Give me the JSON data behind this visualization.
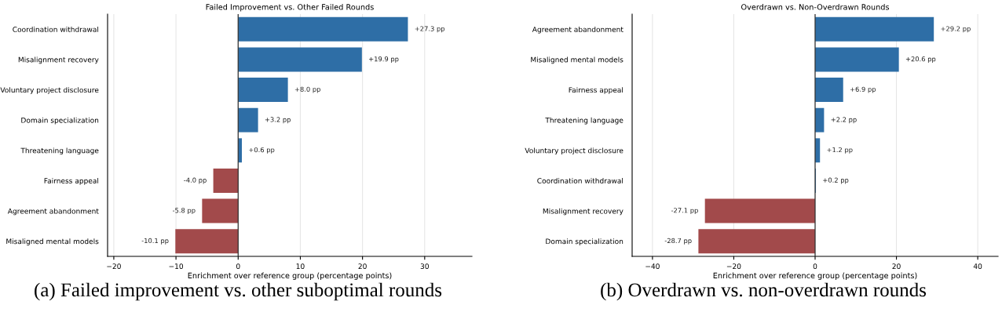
{
  "chart_data": [
    {
      "type": "bar",
      "orientation": "horizontal",
      "title": "Failed Improvement vs. Other Failed Rounds",
      "xlabel": "Enrichment over reference group (percentage points)",
      "categories": [
        "Coordination withdrawal",
        "Misalignment recovery",
        "Voluntary project disclosure",
        "Domain specialization",
        "Threatening language",
        "Fairness appeal",
        "Agreement abandonment",
        "Misaligned mental models"
      ],
      "values": [
        27.3,
        19.9,
        8.0,
        3.2,
        0.6,
        -4.0,
        -5.8,
        -10.1
      ],
      "colors": [
        "#2e6ea6",
        "#2e6ea6",
        "#2e6ea6",
        "#2e6ea6",
        "#2e6ea6",
        "#a24a4b",
        "#a24a4b",
        "#a24a4b"
      ],
      "value_labels": [
        "+27.3 pp",
        "+19.9 pp",
        "+8.0 pp",
        "+3.2 pp",
        "+0.6 pp",
        "-4.0 pp",
        "-5.8 pp",
        "-10.1 pp"
      ],
      "xlim": [
        -21,
        37.6
      ],
      "xticks": [
        -20,
        -10,
        0,
        10,
        20,
        30
      ],
      "grid": "x",
      "legend": false,
      "ref_lines": [
        {
          "axis": "x",
          "value": 0,
          "color": "#333333"
        }
      ],
      "annotations": [
        "(a) Failed improvement vs. other suboptimal rounds"
      ]
    },
    {
      "type": "bar",
      "orientation": "horizontal",
      "title": "Overdrawn vs. Non-Overdrawn Rounds",
      "xlabel": "Enrichment over reference group (percentage points)",
      "categories": [
        "Agreement abandonment",
        "Misaligned mental models",
        "Fairness appeal",
        "Threatening language",
        "Voluntary project disclosure",
        "Coordination withdrawal",
        "Misalignment recovery",
        "Domain specialization"
      ],
      "values": [
        29.2,
        20.6,
        6.9,
        2.2,
        1.2,
        0.2,
        -27.1,
        -28.7
      ],
      "colors": [
        "#2e6ea6",
        "#2e6ea6",
        "#2e6ea6",
        "#2e6ea6",
        "#2e6ea6",
        "#2e6ea6",
        "#a24a4b",
        "#a24a4b"
      ],
      "value_labels": [
        "+29.2 pp",
        "+20.6 pp",
        "+6.9 pp",
        "+2.2 pp",
        "+1.2 pp",
        "+0.2 pp",
        "-27.1 pp",
        "-28.7 pp"
      ],
      "xlim": [
        -45,
        45
      ],
      "xticks": [
        -40,
        -20,
        0,
        20,
        40
      ],
      "grid": "x",
      "legend": false,
      "ref_lines": [
        {
          "axis": "x",
          "value": 0,
          "color": "#333333"
        }
      ],
      "annotations": [
        "(b) Overdrawn vs. non-overdrawn rounds"
      ]
    }
  ]
}
